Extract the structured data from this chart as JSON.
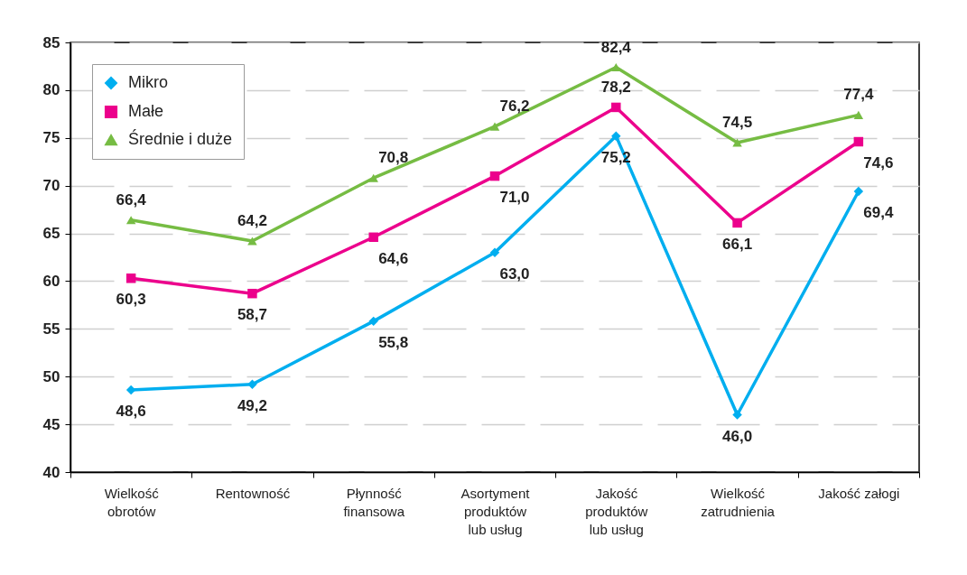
{
  "chart_data": {
    "type": "line",
    "categories": [
      "Wielkość\nobrotów",
      "Rentowność",
      "Płynność\nfinansowa",
      "Asortyment\nproduktów\nlub usług",
      "Jakość\nproduktów\nlub usług",
      "Wielkość\nzatrudnienia",
      "Jakość załogi"
    ],
    "series": [
      {
        "name": "Mikro",
        "color": "#00aeef",
        "marker": "diamond",
        "values": [
          48.6,
          49.2,
          55.8,
          63.0,
          75.2,
          46.0,
          69.4
        ],
        "value_labels": [
          "48,6",
          "49,2",
          "55,8",
          "63,0",
          "75,2",
          "46,0",
          "69,4"
        ]
      },
      {
        "name": "Małe",
        "color": "#ec008c",
        "marker": "square",
        "values": [
          60.3,
          58.7,
          64.6,
          71.0,
          78.2,
          66.1,
          74.6
        ],
        "value_labels": [
          "60,3",
          "58,7",
          "64,6",
          "71,0",
          "78,2",
          "66,1",
          "74,6"
        ]
      },
      {
        "name": "Średnie i duże",
        "color": "#76bc43",
        "marker": "triangle",
        "values": [
          66.4,
          64.2,
          70.8,
          76.2,
          82.4,
          74.5,
          77.4
        ],
        "value_labels": [
          "66,4",
          "64,2",
          "70,8",
          "76,2",
          "82,4",
          "74,5",
          "77,4"
        ]
      }
    ],
    "ylim": [
      40,
      85
    ],
    "yticks": [
      40,
      45,
      50,
      55,
      60,
      65,
      70,
      75,
      80,
      85
    ],
    "grid": "y",
    "legend": "top left"
  }
}
